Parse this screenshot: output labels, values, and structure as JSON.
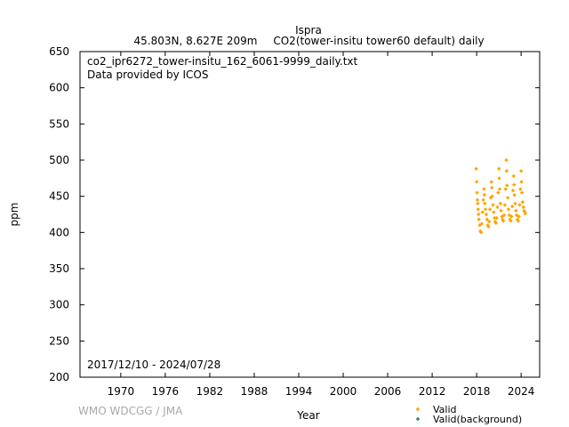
{
  "chart_data": {
    "type": "scatter",
    "title": "Ispra",
    "subtitle_location": "45.803N, 8.627E 209m",
    "subtitle_dataset": "CO2(tower-insitu tower60 default) daily",
    "file_name": "co2_ipr6272_tower-insitu_162_6061-9999_daily.txt",
    "provider_note": "Data provided by ICOS",
    "date_range": "2017/12/10 - 2024/07/28",
    "xlabel": "Year",
    "ylabel": "ppm",
    "xlim": [
      1964.5,
      2026.5
    ],
    "ylim": [
      200,
      650
    ],
    "x_ticks": [
      1970,
      1976,
      1982,
      1988,
      1994,
      2000,
      2006,
      2012,
      2018,
      2024
    ],
    "y_ticks": [
      200,
      250,
      300,
      350,
      400,
      450,
      500,
      550,
      600,
      650
    ],
    "legend_position": "bottom-right",
    "credit": "WMO WDCGG / JMA",
    "series": [
      {
        "name": "Valid",
        "color": "#ffa500",
        "marker": "diamond",
        "x": [
          2017.94,
          2018.0,
          2018.05,
          2018.1,
          2018.15,
          2018.2,
          2018.25,
          2018.3,
          2018.4,
          2018.5,
          2018.6,
          2018.7,
          2018.8,
          2018.9,
          2019.0,
          2019.05,
          2019.1,
          2019.2,
          2019.3,
          2019.4,
          2019.5,
          2019.6,
          2019.7,
          2019.8,
          2019.9,
          2020.0,
          2020.05,
          2020.1,
          2020.2,
          2020.3,
          2020.4,
          2020.5,
          2020.6,
          2020.7,
          2020.8,
          2020.9,
          2021.0,
          2021.05,
          2021.1,
          2021.2,
          2021.3,
          2021.4,
          2021.5,
          2021.6,
          2021.7,
          2021.8,
          2021.9,
          2022.0,
          2022.05,
          2022.1,
          2022.2,
          2022.3,
          2022.4,
          2022.5,
          2022.6,
          2022.7,
          2022.8,
          2022.9,
          2023.0,
          2023.05,
          2023.1,
          2023.2,
          2023.3,
          2023.4,
          2023.5,
          2023.6,
          2023.7,
          2023.8,
          2023.9,
          2024.0,
          2024.05,
          2024.1,
          2024.2,
          2024.3,
          2024.4,
          2024.5,
          2024.57
        ],
        "y": [
          488,
          470,
          455,
          445,
          440,
          432,
          425,
          418,
          410,
          402,
          400,
          412,
          428,
          445,
          460,
          452,
          440,
          432,
          425,
          418,
          410,
          408,
          415,
          432,
          448,
          470,
          462,
          450,
          438,
          428,
          420,
          415,
          413,
          420,
          435,
          455,
          488,
          475,
          460,
          440,
          430,
          422,
          418,
          416,
          424,
          438,
          460,
          500,
          485,
          465,
          448,
          432,
          424,
          418,
          416,
          422,
          436,
          458,
          478,
          466,
          452,
          440,
          430,
          424,
          418,
          416,
          422,
          438,
          460,
          485,
          470,
          455,
          442,
          435,
          430,
          428,
          426
        ]
      },
      {
        "name": "Valid(background)",
        "color": "#2e8b57",
        "marker": "diamond",
        "x": [],
        "y": []
      }
    ]
  }
}
